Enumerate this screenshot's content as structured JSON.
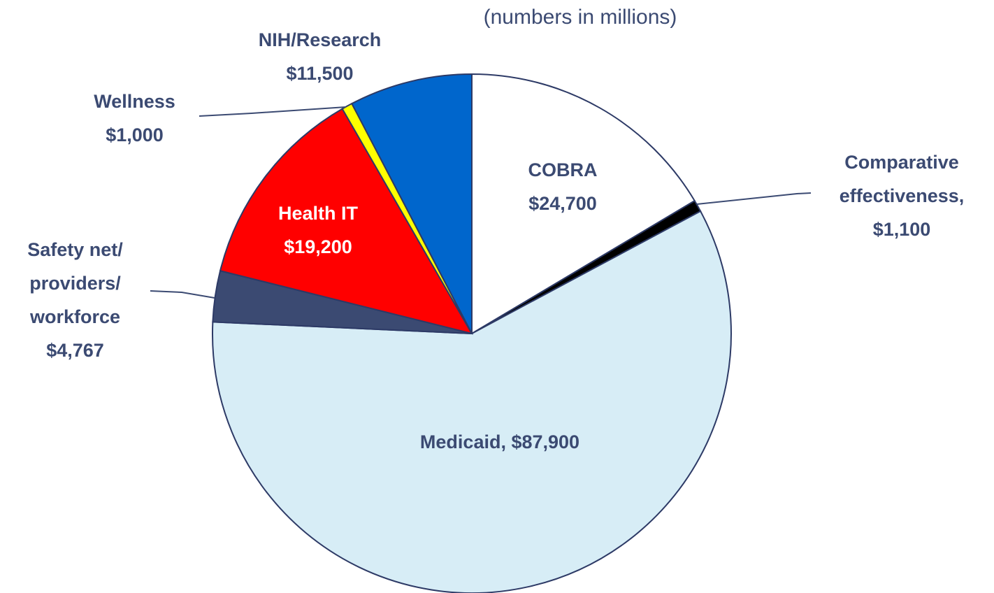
{
  "chart_data": {
    "type": "pie",
    "subtitle": "(numbers in millions)",
    "categories": [
      "COBRA",
      "Comparative effectiveness,",
      "Medicaid,",
      "Safety net/ providers/ workforce",
      "Health IT",
      "Wellness",
      "NIH/Research"
    ],
    "values": [
      24700,
      1100,
      87900,
      4767,
      19200,
      1000,
      11500
    ],
    "value_labels": [
      "$24,700",
      "$1,100",
      "$87,900",
      "$4,767",
      "$19,200",
      "$1,000",
      "$11,500"
    ],
    "colors": [
      "#ffffff",
      "#000000",
      "#d7edf6",
      "#3b4a72",
      "#ff0000",
      "#ffff00",
      "#0066cc"
    ]
  }
}
